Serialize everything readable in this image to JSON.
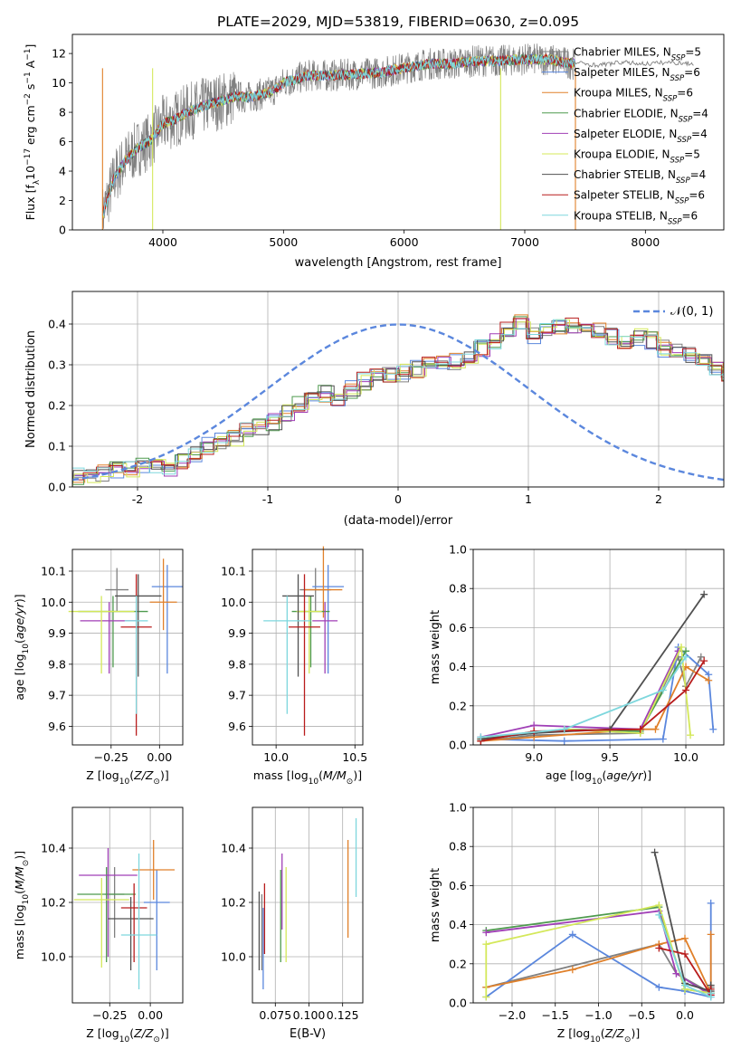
{
  "figure_title": "PLATE=2029, MJD=53819, FIBERID=0630, z=0.095",
  "colors": {
    "Chabrier MILES": "#808080",
    "Salpeter MILES": "#5b87dd",
    "Kroupa MILES": "#e0802a",
    "Chabrier ELODIE": "#4e9a4e",
    "Salpeter ELODIE": "#a03fb6",
    "Kroupa ELODIE": "#d4e85a",
    "Chabrier STELIB": "#505050",
    "Salpeter STELIB": "#b81c1c",
    "Kroupa STELIB": "#7ed7dd"
  },
  "chart_data": [
    {
      "id": "spectrum",
      "type": "line",
      "xlabel": "wavelength [Angstrom, rest frame]",
      "ylabel": "Flux [f_λ10^-17 erg cm^-2 s^-1 A^-1]",
      "xlim": [
        3250,
        8650
      ],
      "ylim": [
        0,
        13.3
      ],
      "xticks": [
        4000,
        5000,
        6000,
        7000,
        8000
      ],
      "yticks": [
        0,
        2,
        4,
        6,
        8,
        10,
        12
      ],
      "legend_position": "upper-right",
      "legend": [
        {
          "base": "Chabrier MILES, N",
          "sub": "SSP",
          "tail": "=5"
        },
        {
          "base": "Salpeter MILES, N",
          "sub": "SSP",
          "tail": "=6"
        },
        {
          "base": "Kroupa MILES, N",
          "sub": "SSP",
          "tail": "=6"
        },
        {
          "base": "Chabrier ELODIE, N",
          "sub": "SSP",
          "tail": "=4"
        },
        {
          "base": "Salpeter ELODIE, N",
          "sub": "SSP",
          "tail": "=4"
        },
        {
          "base": "Kroupa ELODIE, N",
          "sub": "SSP",
          "tail": "=5"
        },
        {
          "base": "Chabrier STELIB, N",
          "sub": "SSP",
          "tail": "=4"
        },
        {
          "base": "Salpeter STELIB, N",
          "sub": "SSP",
          "tail": "=6"
        },
        {
          "base": "Kroupa STELIB, N",
          "sub": "SSP",
          "tail": "=6"
        }
      ],
      "data_x": [
        3500,
        3600,
        3700,
        3800,
        3900,
        4000,
        4100,
        4200,
        4300,
        4400,
        4500,
        4600,
        4700,
        4800,
        4900,
        5000,
        5200,
        5400,
        5600,
        5800,
        6000,
        6200,
        6400,
        6600,
        6800,
        7000,
        7200,
        7400
      ],
      "data_y": [
        1.0,
        3.6,
        4.8,
        5.6,
        6.1,
        7.2,
        7.5,
        8.0,
        8.3,
        8.6,
        8.8,
        9.1,
        9.0,
        9.2,
        9.4,
        10.0,
        10.5,
        10.5,
        10.6,
        10.7,
        11.0,
        11.3,
        11.3,
        11.5,
        11.5,
        11.6,
        11.6,
        11.3
      ],
      "kroupa_miles_extension": {
        "x": [
          7400,
          7600,
          7800,
          8000,
          8200,
          8400
        ],
        "y": [
          11.4,
          11.2,
          11.4,
          11.3,
          11.4,
          11.3
        ]
      }
    },
    {
      "id": "residuals",
      "type": "histogram",
      "xlabel": "(data-model)/error",
      "ylabel": "Normed distribution",
      "xlim": [
        -2.5,
        2.5
      ],
      "ylim": [
        0,
        0.48
      ],
      "xticks": [
        -2,
        -1,
        0,
        1,
        2
      ],
      "yticks": [
        0.0,
        0.1,
        0.2,
        0.3,
        0.4
      ],
      "grid": true,
      "legend_position": "upper-right",
      "reference_curve": "𝒩(0, 1)",
      "bin_width": 0.1,
      "base_values": [
        0.025,
        0.03,
        0.035,
        0.04,
        0.045,
        0.05,
        0.05,
        0.045,
        0.06,
        0.08,
        0.1,
        0.11,
        0.12,
        0.14,
        0.15,
        0.16,
        0.18,
        0.2,
        0.22,
        0.23,
        0.21,
        0.24,
        0.26,
        0.27,
        0.28,
        0.28,
        0.29,
        0.3,
        0.3,
        0.31,
        0.32,
        0.34,
        0.36,
        0.39,
        0.4,
        0.37,
        0.38,
        0.39,
        0.4,
        0.38,
        0.38,
        0.37,
        0.36,
        0.37,
        0.36,
        0.34,
        0.34,
        0.32,
        0.31,
        0.29,
        0.28,
        0.25,
        0.23,
        0.23,
        0.22,
        0.2,
        0.18,
        0.17,
        0.15,
        0.14,
        0.13,
        0.12,
        0.11,
        0.09,
        0.08,
        0.07,
        0.06,
        0.055,
        0.05,
        0.04,
        0.035,
        0.03,
        0.03,
        0.03,
        0.03
      ],
      "base_x_start": -2.5
    },
    {
      "id": "age_vs_Z",
      "type": "errorbar",
      "xlabel": "Z [log10(Z/Z⊙)]",
      "ylabel": "age [log10(age/yr)]",
      "xlim": [
        -0.45,
        0.12
      ],
      "ylim": [
        9.54,
        10.17
      ],
      "xticks": [
        -0.25,
        0.0
      ],
      "xticklabels": [
        "−0.25",
        "0.00"
      ],
      "yticks": [
        9.6,
        9.7,
        9.8,
        9.9,
        10.0,
        10.1
      ],
      "points": [
        {
          "model": "Chabrier MILES",
          "x": -0.22,
          "xerr": 0.06,
          "y": 10.04,
          "yerr": [
            0.07,
            0.07
          ]
        },
        {
          "model": "Salpeter MILES",
          "x": 0.04,
          "xerr": 0.08,
          "y": 10.05,
          "yerr": [
            0.28,
            0.07
          ]
        },
        {
          "model": "Kroupa MILES",
          "x": 0.02,
          "xerr": 0.07,
          "y": 10.0,
          "yerr": [
            0.09,
            0.14
          ]
        },
        {
          "model": "Chabrier ELODIE",
          "x": -0.24,
          "xerr": 0.18,
          "y": 9.97,
          "yerr": [
            0.18,
            0.05
          ]
        },
        {
          "model": "Salpeter ELODIE",
          "x": -0.26,
          "xerr": 0.15,
          "y": 9.94,
          "yerr": [
            0.17,
            0.06
          ]
        },
        {
          "model": "Kroupa ELODIE",
          "x": -0.3,
          "xerr": 0.17,
          "y": 9.97,
          "yerr": [
            0.2,
            0.05
          ]
        },
        {
          "model": "Chabrier STELIB",
          "x": -0.11,
          "xerr": 0.12,
          "y": 10.02,
          "yerr": [
            0.26,
            0.07
          ]
        },
        {
          "model": "Salpeter STELIB",
          "x": -0.12,
          "xerr": 0.08,
          "y": 9.92,
          "yerr": [
            0.35,
            0.17
          ]
        },
        {
          "model": "Kroupa STELIB",
          "x": -0.12,
          "xerr": 0.06,
          "y": 9.94,
          "yerr": [
            0.3,
            0.08
          ]
        }
      ]
    },
    {
      "id": "age_vs_mass",
      "type": "errorbar",
      "xlabel": "mass [log10(M/M⊙)]",
      "ylabel": "",
      "xlim": [
        9.85,
        10.55
      ],
      "ylim": [
        9.54,
        10.17
      ],
      "xticks": [
        10.0,
        10.5
      ],
      "xticklabels": [
        "10.0",
        "10.5"
      ],
      "yticks": [
        9.6,
        9.7,
        9.8,
        9.9,
        10.0,
        10.1
      ],
      "points": [
        {
          "model": "Chabrier MILES",
          "x": 10.25,
          "xerr": 0.1,
          "y": 10.04,
          "yerr": [
            0.07,
            0.07
          ]
        },
        {
          "model": "Salpeter MILES",
          "x": 10.33,
          "xerr": 0.1,
          "y": 10.05,
          "yerr": [
            0.28,
            0.07
          ]
        },
        {
          "model": "Kroupa MILES",
          "x": 10.3,
          "xerr": 0.12,
          "y": 10.04,
          "yerr": [
            0.09,
            0.14
          ]
        },
        {
          "model": "Chabrier ELODIE",
          "x": 10.22,
          "xerr": 0.12,
          "y": 9.97,
          "yerr": [
            0.18,
            0.05
          ]
        },
        {
          "model": "Salpeter ELODIE",
          "x": 10.31,
          "xerr": 0.08,
          "y": 9.94,
          "yerr": [
            0.17,
            0.06
          ]
        },
        {
          "model": "Kroupa ELODIE",
          "x": 10.21,
          "xerr": 0.08,
          "y": 9.97,
          "yerr": [
            0.2,
            0.05
          ]
        },
        {
          "model": "Chabrier STELIB",
          "x": 10.14,
          "xerr": 0.1,
          "y": 10.02,
          "yerr": [
            0.26,
            0.07
          ]
        },
        {
          "model": "Salpeter STELIB",
          "x": 10.18,
          "xerr": 0.1,
          "y": 9.92,
          "yerr": [
            0.35,
            0.17
          ]
        },
        {
          "model": "Kroupa STELIB",
          "x": 10.07,
          "xerr": 0.15,
          "y": 9.94,
          "yerr": [
            0.3,
            0.08
          ]
        }
      ]
    },
    {
      "id": "mass_weight_vs_age",
      "type": "line",
      "xlabel": "age [log10(age/yr)]",
      "ylabel": "mass weight",
      "xlim": [
        8.6,
        10.25
      ],
      "ylim": [
        0,
        1.0
      ],
      "xticks": [
        9.0,
        9.5,
        10.0
      ],
      "xticklabels": [
        "9.0",
        "9.5",
        "10.0"
      ],
      "yticks": [
        0.0,
        0.2,
        0.4,
        0.6,
        0.8,
        1.0
      ],
      "grid": true,
      "series": [
        {
          "model": "Chabrier MILES",
          "x": [
            8.65,
            9.0,
            9.7,
            9.95,
            10.0,
            10.1
          ],
          "y": [
            0.02,
            0.05,
            0.06,
            0.45,
            0.3,
            0.45
          ]
        },
        {
          "model": "Salpeter MILES",
          "x": [
            8.65,
            9.2,
            9.85,
            9.95,
            10.15,
            10.18
          ],
          "y": [
            0.03,
            0.02,
            0.03,
            0.5,
            0.36,
            0.08
          ]
        },
        {
          "model": "Kroupa MILES",
          "x": [
            8.65,
            9.0,
            9.7,
            9.8,
            10.0,
            10.15
          ],
          "y": [
            0.02,
            0.04,
            0.08,
            0.08,
            0.4,
            0.33
          ]
        },
        {
          "model": "Chabrier ELODIE",
          "x": [
            8.65,
            9.2,
            9.7,
            10.0
          ],
          "y": [
            0.03,
            0.08,
            0.07,
            0.48
          ]
        },
        {
          "model": "Salpeter ELODIE",
          "x": [
            8.65,
            9.0,
            9.7,
            9.95
          ],
          "y": [
            0.04,
            0.1,
            0.08,
            0.48
          ]
        },
        {
          "model": "Kroupa ELODIE",
          "x": [
            8.65,
            9.2,
            9.7,
            9.97,
            10.03
          ],
          "y": [
            0.03,
            0.08,
            0.06,
            0.5,
            0.05
          ]
        },
        {
          "model": "Chabrier STELIB",
          "x": [
            8.65,
            9.0,
            9.5,
            10.12
          ],
          "y": [
            0.03,
            0.06,
            0.08,
            0.77
          ]
        },
        {
          "model": "Salpeter STELIB",
          "x": [
            8.65,
            9.0,
            9.7,
            10.0,
            10.12
          ],
          "y": [
            0.02,
            0.07,
            0.08,
            0.28,
            0.43
          ]
        },
        {
          "model": "Kroupa STELIB",
          "x": [
            8.65,
            9.2,
            9.85,
            10.0
          ],
          "y": [
            0.04,
            0.08,
            0.28,
            0.45
          ]
        }
      ]
    },
    {
      "id": "mass_vs_Z",
      "type": "errorbar",
      "xlabel": "Z [log10(Z/Z⊙)]",
      "ylabel": "mass [log10(M/M⊙)]",
      "xlim": [
        -0.48,
        0.2
      ],
      "ylim": [
        9.83,
        10.55
      ],
      "xticks": [
        -0.25,
        0.0
      ],
      "xticklabels": [
        "−0.25",
        "0.00"
      ],
      "yticks": [
        10.0,
        10.2,
        10.4
      ],
      "points": [
        {
          "model": "Chabrier MILES",
          "x": -0.22,
          "xerr": 0.06,
          "y": 10.23,
          "yerr": [
            0.16,
            0.1
          ]
        },
        {
          "model": "Salpeter MILES",
          "x": 0.04,
          "xerr": 0.08,
          "y": 10.2,
          "yerr": [
            0.25,
            0.12
          ]
        },
        {
          "model": "Kroupa MILES",
          "x": 0.02,
          "xerr": 0.13,
          "y": 10.32,
          "yerr": [
            0.11,
            0.11
          ]
        },
        {
          "model": "Chabrier ELODIE",
          "x": -0.27,
          "xerr": 0.18,
          "y": 10.23,
          "yerr": [
            0.25,
            0.1
          ]
        },
        {
          "model": "Salpeter ELODIE",
          "x": -0.26,
          "xerr": 0.18,
          "y": 10.3,
          "yerr": [
            0.3,
            0.1
          ]
        },
        {
          "model": "Kroupa ELODIE",
          "x": -0.3,
          "xerr": 0.17,
          "y": 10.21,
          "yerr": [
            0.25,
            0.08
          ]
        },
        {
          "model": "Chabrier STELIB",
          "x": -0.12,
          "xerr": 0.14,
          "y": 10.14,
          "yerr": [
            0.19,
            0.08
          ]
        },
        {
          "model": "Salpeter STELIB",
          "x": -0.1,
          "xerr": 0.08,
          "y": 10.18,
          "yerr": [
            0.2,
            0.09
          ]
        },
        {
          "model": "Kroupa STELIB",
          "x": -0.07,
          "xerr": 0.11,
          "y": 10.08,
          "yerr": [
            0.2,
            0.3
          ]
        }
      ]
    },
    {
      "id": "mass_vs_ebv",
      "type": "errorbar",
      "xlabel": "E(B-V)",
      "ylabel": "",
      "xlim": [
        0.058,
        0.14
      ],
      "ylim": [
        9.83,
        10.55
      ],
      "xticks": [
        0.075,
        0.1,
        0.125
      ],
      "xticklabels": [
        "0.075",
        "0.100",
        "0.125"
      ],
      "yticks": [
        10.0,
        10.2,
        10.4
      ],
      "points": [
        {
          "model": "Chabrier MILES",
          "x": 0.065,
          "y": 10.13,
          "yerr": [
            0.18,
            0.1
          ]
        },
        {
          "model": "Salpeter MILES",
          "x": 0.066,
          "y": 10.08,
          "yerr": [
            0.2,
            0.1
          ]
        },
        {
          "model": "Kroupa MILES",
          "x": 0.129,
          "y": 10.25,
          "yerr": [
            0.18,
            0.18
          ]
        },
        {
          "model": "Chabrier ELODIE",
          "x": 0.079,
          "y": 10.18,
          "yerr": [
            0.2,
            0.14
          ]
        },
        {
          "model": "Salpeter ELODIE",
          "x": 0.08,
          "y": 10.22,
          "yerr": [
            0.12,
            0.16
          ]
        },
        {
          "model": "Kroupa ELODIE",
          "x": 0.083,
          "y": 10.13,
          "yerr": [
            0.15,
            0.2
          ]
        },
        {
          "model": "Chabrier STELIB",
          "x": 0.063,
          "y": 10.09,
          "yerr": [
            0.14,
            0.15
          ]
        },
        {
          "model": "Salpeter STELIB",
          "x": 0.067,
          "y": 10.14,
          "yerr": [
            0.13,
            0.13
          ]
        },
        {
          "model": "Kroupa STELIB",
          "x": 0.135,
          "y": 10.36,
          "yerr": [
            0.14,
            0.15
          ]
        }
      ]
    },
    {
      "id": "mass_weight_vs_Z",
      "type": "line",
      "xlabel": "Z [log10(Z/Z⊙)]",
      "ylabel": "mass weight",
      "xlim": [
        -2.45,
        0.45
      ],
      "ylim": [
        0,
        1.0
      ],
      "xticks": [
        -2.0,
        -1.5,
        -1.0,
        -0.5,
        0.0
      ],
      "xticklabels": [
        "−2.0",
        "−1.5",
        "−1.0",
        "−0.5",
        "0.0"
      ],
      "yticks": [
        0.0,
        0.2,
        0.4,
        0.6,
        0.8,
        1.0
      ],
      "grid": true,
      "series": [
        {
          "model": "Chabrier MILES",
          "x": [
            -2.3,
            -0.3,
            -0.1,
            0.3,
            0.3
          ],
          "y": [
            0.08,
            0.3,
            0.15,
            0.05,
            0.08
          ]
        },
        {
          "model": "Salpeter MILES",
          "x": [
            -2.3,
            -1.3,
            -0.3,
            0.0,
            0.3,
            0.3
          ],
          "y": [
            0.03,
            0.35,
            0.08,
            0.06,
            0.03,
            0.51
          ]
        },
        {
          "model": "Kroupa MILES",
          "x": [
            -2.3,
            -1.3,
            -0.3,
            0.0,
            0.3,
            0.3
          ],
          "y": [
            0.08,
            0.17,
            0.3,
            0.33,
            0.05,
            0.35
          ]
        },
        {
          "model": "Chabrier ELODIE",
          "x": [
            -2.3,
            -0.3,
            0.0,
            0.3
          ],
          "y": [
            0.37,
            0.49,
            0.07,
            0.05
          ]
        },
        {
          "model": "Salpeter ELODIE",
          "x": [
            -2.3,
            -0.3,
            -0.1,
            0.3
          ],
          "y": [
            0.36,
            0.47,
            0.15,
            0.04
          ]
        },
        {
          "model": "Kroupa ELODIE",
          "x": [
            -2.3,
            -2.3,
            -0.3,
            0.0,
            0.3
          ],
          "y": [
            0.03,
            0.3,
            0.5,
            0.07,
            0.05
          ]
        },
        {
          "model": "Chabrier STELIB",
          "x": [
            -0.35,
            0.0,
            0.3,
            0.3
          ],
          "y": [
            0.77,
            0.1,
            0.06,
            0.09
          ]
        },
        {
          "model": "Salpeter STELIB",
          "x": [
            -0.3,
            0.0,
            0.3,
            0.3
          ],
          "y": [
            0.28,
            0.25,
            0.04,
            0.07
          ]
        },
        {
          "model": "Kroupa STELIB",
          "x": [
            -0.3,
            0.0,
            0.3,
            0.3
          ],
          "y": [
            0.45,
            0.09,
            0.03,
            0.05
          ]
        }
      ]
    }
  ]
}
